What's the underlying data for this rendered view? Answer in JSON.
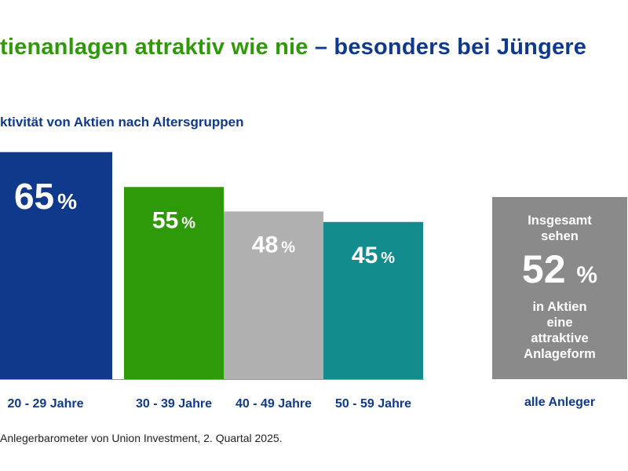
{
  "header": {
    "title_green": "tienanlagen attraktiv wie nie",
    "title_blue": " – besonders bei Jüngere",
    "subtitle": "ktivität von Aktien nach Altersgruppen"
  },
  "chart_data": {
    "type": "bar",
    "categories": [
      "20 - 29 Jahre",
      "30 - 39 Jahre",
      "40 - 49 Jahre",
      "50 - 59 Jahre"
    ],
    "values": [
      65,
      55,
      48,
      45
    ],
    "value_labels": [
      "65",
      "55",
      "48",
      "45"
    ],
    "unit": "%",
    "colors": [
      "#0f3a8c",
      "#2e9a0a",
      "#b0b0b0",
      "#138c8e"
    ],
    "ylim": [
      0,
      100
    ],
    "grid": false,
    "legend": "none"
  },
  "summary": {
    "line1": "Insgesamt",
    "line2": "sehen",
    "value": "52",
    "unit": "%",
    "line3": "in Aktien",
    "line4": "eine",
    "line5": "attraktive",
    "line6": "Anlageform",
    "label": "alle Anleger",
    "color": "#8a8a8a"
  },
  "footer": {
    "source": "Anlegerbarometer von Union Investment, 2. Quartal 2025."
  }
}
